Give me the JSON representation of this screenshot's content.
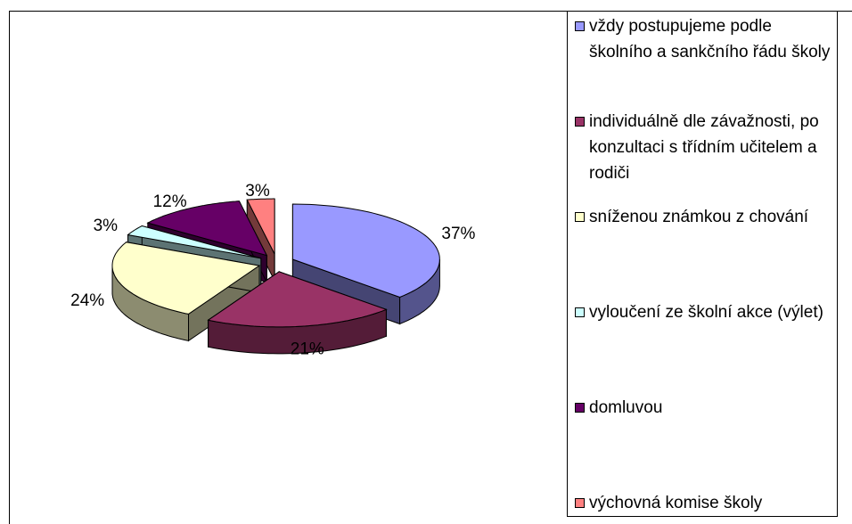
{
  "chart_data": {
    "type": "pie3d",
    "series": [
      {
        "name": "vždy postupujeme podle školního a sankčního řádu školy",
        "color": "#9999ff",
        "values": [
          37
        ],
        "value_labels": [
          "37%"
        ]
      },
      {
        "name": "individuálně dle závažnosti, po konzultaci s třídním učitelem a rodiči",
        "color": "#993366",
        "values": [
          21
        ],
        "value_labels": [
          "21%"
        ]
      },
      {
        "name": "sníženou známkou z chování",
        "color": "#ffffcc",
        "values": [
          24
        ],
        "value_labels": [
          "24%"
        ]
      },
      {
        "name": "vyloučení ze školní akce (výlet)",
        "color": "#ccffff",
        "values": [
          3
        ],
        "value_labels": [
          "3%"
        ]
      },
      {
        "name": "domluvou",
        "color": "#660066",
        "values": [
          12
        ],
        "value_labels": [
          "12%"
        ]
      },
      {
        "name": "výchovná komise školy",
        "color": "#ff8080",
        "values": [
          3
        ],
        "value_labels": [
          "3%"
        ]
      }
    ],
    "legend": "right"
  }
}
